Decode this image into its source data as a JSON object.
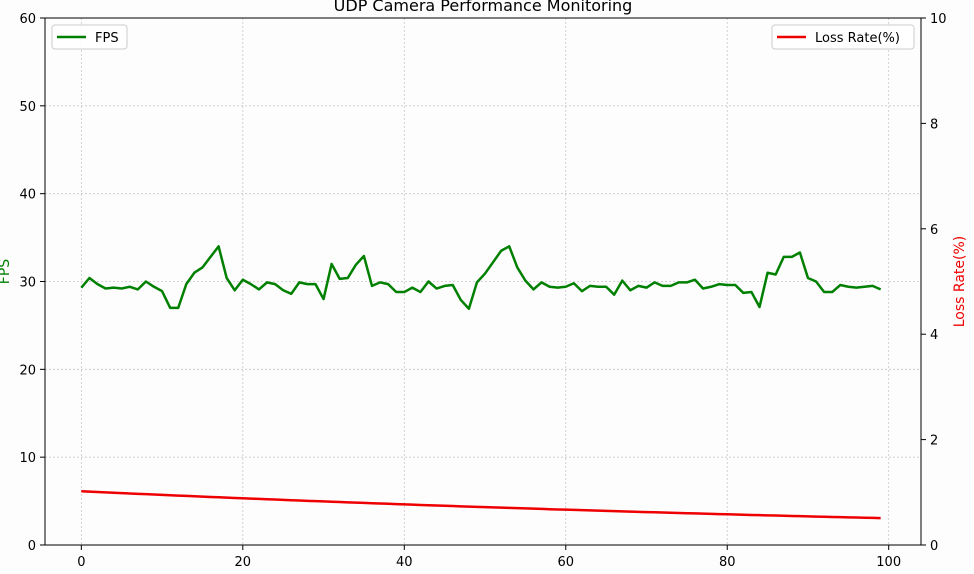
{
  "chart_data": {
    "type": "line",
    "title": "UDP Camera Performance Monitoring",
    "xlabel": "",
    "ylabel_left": "FPS",
    "ylabel_right": "Loss Rate(%)",
    "xlim": [
      -4.5,
      104
    ],
    "ylim_left": [
      0,
      60
    ],
    "ylim_right": [
      0,
      10
    ],
    "x_ticks": [
      0,
      20,
      40,
      60,
      80,
      100
    ],
    "y_ticks_left": [
      0,
      10,
      20,
      30,
      40,
      50,
      60
    ],
    "y_ticks_right": [
      0,
      2,
      4,
      6,
      8,
      10
    ],
    "grid": true,
    "series": [
      {
        "name": "FPS",
        "axis": "left",
        "color": "#008000",
        "legend": "top-left",
        "x": [
          0,
          1,
          2,
          3,
          4,
          5,
          6,
          7,
          8,
          9,
          10,
          11,
          12,
          13,
          14,
          15,
          16,
          17,
          18,
          19,
          20,
          21,
          22,
          23,
          24,
          25,
          26,
          27,
          28,
          29,
          30,
          31,
          32,
          33,
          34,
          35,
          36,
          37,
          38,
          39,
          40,
          41,
          42,
          43,
          44,
          45,
          46,
          47,
          48,
          49,
          50,
          51,
          52,
          53,
          54,
          55,
          56,
          57,
          58,
          59,
          60,
          61,
          62,
          63,
          64,
          65,
          66,
          67,
          68,
          69,
          70,
          71,
          72,
          73,
          74,
          75,
          76,
          77,
          78,
          79,
          80,
          81,
          82,
          83,
          84,
          85,
          86,
          87,
          88,
          89,
          90,
          91,
          92,
          93,
          94,
          95,
          96,
          97,
          98,
          99
        ],
        "values": [
          29.3,
          30.4,
          29.7,
          29.2,
          29.3,
          29.2,
          29.4,
          29.1,
          30.0,
          29.4,
          28.9,
          27.0,
          27.0,
          29.7,
          31.0,
          31.6,
          32.8,
          34.0,
          30.4,
          29.0,
          30.2,
          29.7,
          29.1,
          29.9,
          29.7,
          29.0,
          28.6,
          29.9,
          29.7,
          29.7,
          28.0,
          32.0,
          30.3,
          30.4,
          31.9,
          32.9,
          29.5,
          29.9,
          29.7,
          28.8,
          28.8,
          29.3,
          28.8,
          30.0,
          29.2,
          29.5,
          29.6,
          27.9,
          26.9,
          29.9,
          30.9,
          32.2,
          33.5,
          34.0,
          31.6,
          30.1,
          29.1,
          29.9,
          29.4,
          29.3,
          29.4,
          29.8,
          28.9,
          29.5,
          29.4,
          29.4,
          28.5,
          30.1,
          29.0,
          29.5,
          29.3,
          29.9,
          29.5,
          29.5,
          29.9,
          29.9,
          30.2,
          29.2,
          29.4,
          29.7,
          29.6,
          29.6,
          28.7,
          28.8,
          27.1,
          31.0,
          30.8,
          32.8,
          32.8,
          33.3,
          30.4,
          30.0,
          28.8,
          28.8,
          29.6,
          29.4,
          29.3,
          29.4,
          29.5,
          29.1
        ]
      },
      {
        "name": "Loss Rate(%)",
        "axis": "right",
        "color": "#ee0000",
        "legend": "top-right",
        "x_start": 0,
        "x_end": 99,
        "values_start": 1.02,
        "values_end": 0.51,
        "curve": "exponential"
      }
    ]
  }
}
